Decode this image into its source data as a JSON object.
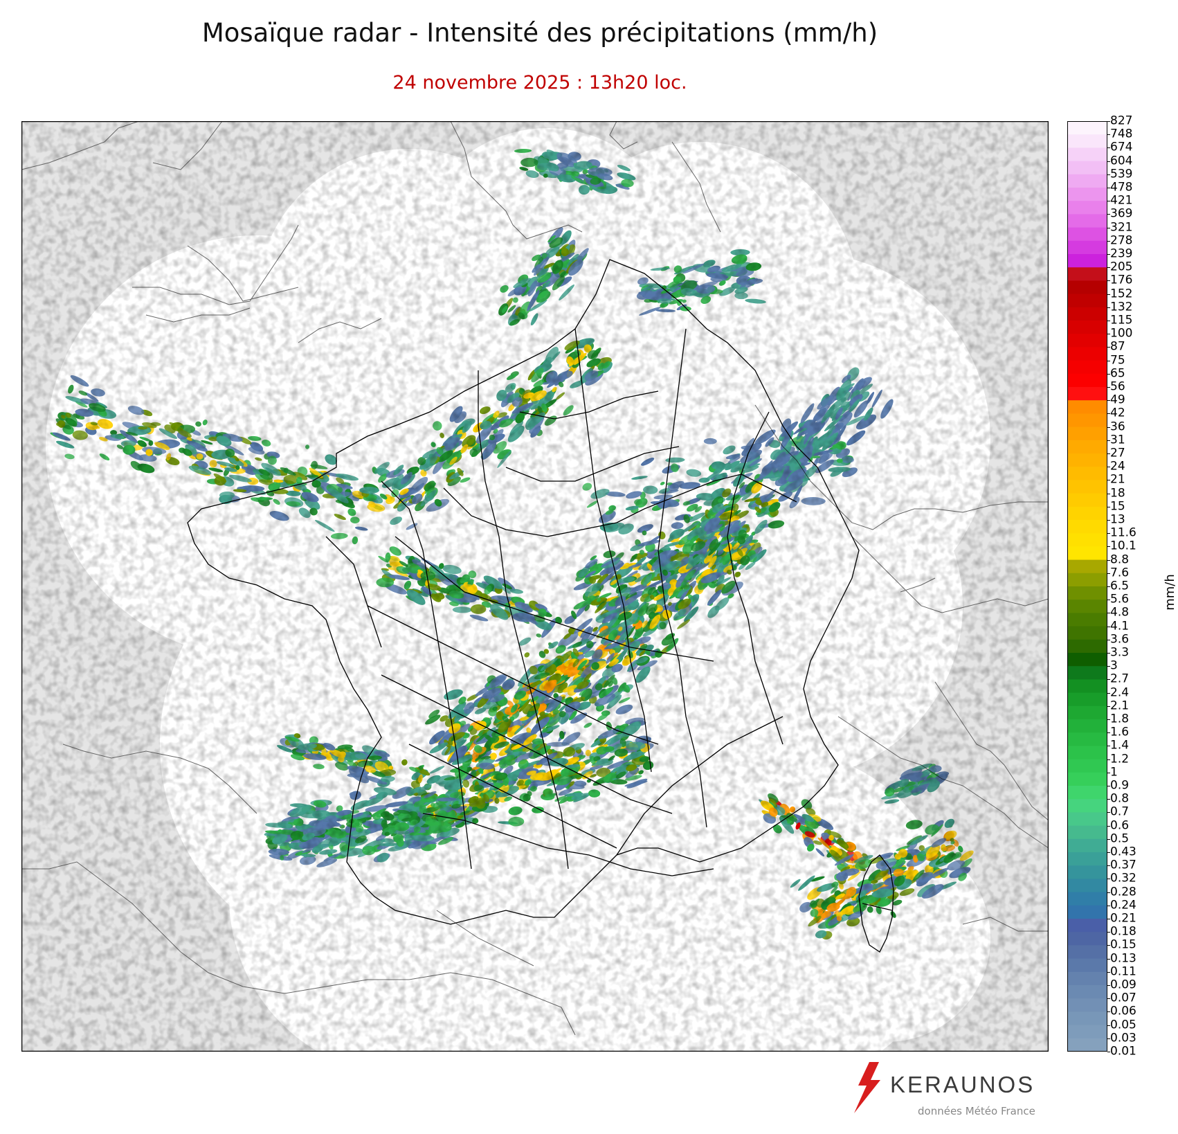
{
  "header": {
    "title": "Mosaïque radar - Intensité des précipitations (mm/h)",
    "subtitle": "24 novembre 2025 : 13h20 loc."
  },
  "colorbar": {
    "unit": "mm/h",
    "labels": [
      "827",
      "748",
      "674",
      "604",
      "539",
      "478",
      "421",
      "369",
      "321",
      "278",
      "239",
      "205",
      "176",
      "152",
      "132",
      "115",
      "100",
      "87",
      "75",
      "65",
      "56",
      "49",
      "42",
      "36",
      "31",
      "27",
      "24",
      "21",
      "18",
      "15",
      "13",
      "11.6",
      "10.1",
      "8.8",
      "7.6",
      "6.5",
      "5.6",
      "4.8",
      "4.1",
      "3.6",
      "3.3",
      "3",
      "2.7",
      "2.4",
      "2.1",
      "1.8",
      "1.6",
      "1.4",
      "1.2",
      "1",
      "0.9",
      "0.8",
      "0.7",
      "0.6",
      "0.5",
      "0.43",
      "0.37",
      "0.32",
      "0.28",
      "0.24",
      "0.21",
      "0.18",
      "0.15",
      "0.13",
      "0.11",
      "0.09",
      "0.07",
      "0.06",
      "0.05",
      "0.03",
      "0.01"
    ],
    "colors": [
      "#fdf4fd",
      "#fae6fb",
      "#f6d2f8",
      "#f2bff5",
      "#efaaf2",
      "#ec95ee",
      "#e980eb",
      "#e46be8",
      "#dd52e3",
      "#d53be0",
      "#cc22dd",
      "#c40f1a",
      "#b50000",
      "#c00000",
      "#cc0000",
      "#d80000",
      "#e20000",
      "#ec0000",
      "#f50000",
      "#fc0000",
      "#ff1010",
      "#ff8c00",
      "#ff9600",
      "#ffa000",
      "#ffaa00",
      "#ffb200",
      "#ffbb00",
      "#ffc300",
      "#ffcb00",
      "#ffd300",
      "#ffda00",
      "#ffe000",
      "#ffe500",
      "#a8a800",
      "#8c9e00",
      "#6f9000",
      "#5a8500",
      "#4a7c00",
      "#3f7400",
      "#2d6a00",
      "#0f5e00",
      "#0e7a1c",
      "#139022",
      "#189d2a",
      "#1ea832",
      "#22b13a",
      "#27ba42",
      "#2cc24a",
      "#30c852",
      "#36cf5a",
      "#3fd56c",
      "#46d47e",
      "#48c88a",
      "#46ba8e",
      "#40ac94",
      "#3aa098",
      "#35949c",
      "#3289a2",
      "#307ea8",
      "#3274ac",
      "#4a5fa8",
      "#4e66a4",
      "#5570a6",
      "#5b79aa",
      "#6482ae",
      "#6b8ab2",
      "#7290b5",
      "#7897b8",
      "#7e9cbb",
      "#85a1bd"
    ]
  },
  "rain": {
    "level_colors": [
      "#5577aa",
      "#3f9e8a",
      "#2db048",
      "#1a8a2a",
      "#6a8f00",
      "#ffd000",
      "#ff9800",
      "#e00000"
    ]
  },
  "brand": {
    "name": "KERAUNOS",
    "credit": "données Météo France",
    "accent": "#d81e1e"
  }
}
